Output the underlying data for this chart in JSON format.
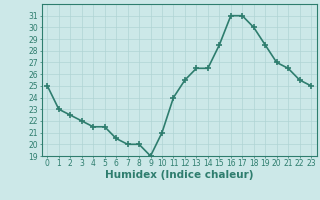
{
  "x": [
    0,
    1,
    2,
    3,
    4,
    5,
    6,
    7,
    8,
    9,
    10,
    11,
    12,
    13,
    14,
    15,
    16,
    17,
    18,
    19,
    20,
    21,
    22,
    23
  ],
  "y": [
    25.0,
    23.0,
    22.5,
    22.0,
    21.5,
    21.5,
    20.5,
    20.0,
    20.0,
    19.0,
    21.0,
    24.0,
    25.5,
    26.5,
    26.5,
    28.5,
    31.0,
    31.0,
    30.0,
    28.5,
    27.0,
    26.5,
    25.5,
    25.0
  ],
  "line_color": "#2e7d6e",
  "marker": "+",
  "marker_size": 4,
  "marker_linewidth": 1.2,
  "bg_color": "#cce8e8",
  "grid_color": "#b0d4d4",
  "xlabel": "Humidex (Indice chaleur)",
  "ylim": [
    19,
    32
  ],
  "xlim": [
    -0.5,
    23.5
  ],
  "yticks": [
    19,
    20,
    21,
    22,
    23,
    24,
    25,
    26,
    27,
    28,
    29,
    30,
    31
  ],
  "xticks": [
    0,
    1,
    2,
    3,
    4,
    5,
    6,
    7,
    8,
    9,
    10,
    11,
    12,
    13,
    14,
    15,
    16,
    17,
    18,
    19,
    20,
    21,
    22,
    23
  ],
  "xtick_labels": [
    "0",
    "1",
    "2",
    "3",
    "4",
    "5",
    "6",
    "7",
    "8",
    "9",
    "10",
    "11",
    "12",
    "13",
    "14",
    "15",
    "16",
    "17",
    "18",
    "19",
    "20",
    "21",
    "22",
    "23"
  ],
  "tick_fontsize": 5.5,
  "xlabel_fontsize": 7.5,
  "line_width": 1.2,
  "axis_color": "#2e7d6e"
}
